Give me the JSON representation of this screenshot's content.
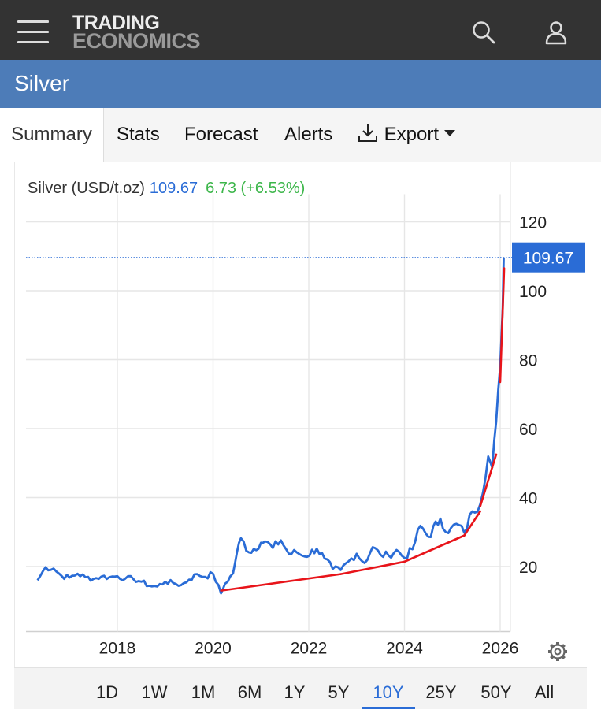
{
  "logo": {
    "line1": "TRADING",
    "line2": "ECONOMICS"
  },
  "page_title": "Silver",
  "tabs": [
    {
      "label": "Summary",
      "active": true
    },
    {
      "label": "Stats"
    },
    {
      "label": "Forecast"
    },
    {
      "label": "Alerts"
    },
    {
      "label": "Export",
      "icon": "download-icon",
      "has_dropdown": true
    }
  ],
  "quote": {
    "name": "Silver (USD/t.oz)",
    "price": "109.67",
    "change": "6.73 (+6.53%)"
  },
  "chart_data": {
    "type": "line",
    "series": [
      {
        "values": [
          [
            "2016-05",
            16.0
          ],
          [
            "2016-07",
            19.8
          ],
          [
            "2016-09",
            19.4
          ],
          [
            "2016-11",
            17.3
          ],
          [
            "2017-01",
            16.8
          ],
          [
            "2017-03",
            17.9
          ],
          [
            "2017-05",
            16.9
          ],
          [
            "2017-07",
            16.4
          ],
          [
            "2017-09",
            17.1
          ],
          [
            "2017-11",
            16.9
          ],
          [
            "2018-01",
            17.2
          ],
          [
            "2018-03",
            16.5
          ],
          [
            "2018-05",
            16.4
          ],
          [
            "2018-07",
            15.6
          ],
          [
            "2018-09",
            14.4
          ],
          [
            "2018-11",
            14.2
          ],
          [
            "2019-01",
            15.6
          ],
          [
            "2019-03",
            15.2
          ],
          [
            "2019-05",
            14.6
          ],
          [
            "2019-07",
            16.2
          ],
          [
            "2019-09",
            17.8
          ],
          [
            "2019-11",
            17.0
          ],
          [
            "2020-01",
            17.9
          ],
          [
            "2020-03",
            12.2
          ],
          [
            "2020-04",
            15.0
          ],
          [
            "2020-06",
            18.0
          ],
          [
            "2020-07",
            24.2
          ],
          [
            "2020-08",
            28.2
          ],
          [
            "2020-10",
            24.1
          ],
          [
            "2021-01",
            26.9
          ],
          [
            "2021-02",
            27.3
          ],
          [
            "2021-04",
            25.4
          ],
          [
            "2021-06",
            27.6
          ],
          [
            "2021-08",
            23.7
          ],
          [
            "2021-10",
            24.1
          ],
          [
            "2021-12",
            22.9
          ],
          [
            "2022-03",
            25.2
          ],
          [
            "2022-05",
            22.3
          ],
          [
            "2022-07",
            19.3
          ],
          [
            "2022-09",
            19.0
          ],
          [
            "2022-11",
            21.5
          ],
          [
            "2023-01",
            23.7
          ],
          [
            "2023-03",
            21.0
          ],
          [
            "2023-05",
            25.6
          ],
          [
            "2023-07",
            23.4
          ],
          [
            "2023-09",
            23.2
          ],
          [
            "2023-11",
            24.8
          ],
          [
            "2024-01",
            22.5
          ],
          [
            "2024-03",
            25.0
          ],
          [
            "2024-05",
            31.8
          ],
          [
            "2024-07",
            28.6
          ],
          [
            "2024-10",
            33.9
          ],
          [
            "2024-12",
            29.7
          ],
          [
            "2025-02",
            32.4
          ],
          [
            "2025-04",
            29.8
          ],
          [
            "2025-06",
            36.0
          ],
          [
            "2025-08",
            38.1
          ],
          [
            "2025-10",
            51.9
          ],
          [
            "2025-11",
            48.7
          ],
          [
            "2025-12",
            62.0
          ],
          [
            "2026-01",
            78.0
          ],
          [
            "2026-01-20",
            95.0
          ],
          [
            "2026-01-28",
            109.67
          ]
        ]
      }
    ],
    "trendlines": [
      [
        [
          "2020-03",
          13.0
        ],
        [
          "2022-09",
          17.8
        ]
      ],
      [
        [
          "2022-09",
          17.8
        ],
        [
          "2024-01",
          21.4
        ]
      ],
      [
        [
          "2024-01",
          21.4
        ],
        [
          "2025-04",
          29.0
        ]
      ],
      [
        [
          "2025-04",
          29.0
        ],
        [
          "2025-08",
          36.0
        ]
      ],
      [
        [
          "2025-08",
          37.5
        ],
        [
          "2025-12",
          52.5
        ]
      ],
      [
        [
          "2026-01",
          73.5
        ],
        [
          "2026-02",
          106.5
        ]
      ]
    ],
    "x_ticks": [
      "2018",
      "2020",
      "2022",
      "2024",
      "2026"
    ],
    "y_ticks": [
      20,
      40,
      60,
      80,
      100,
      120
    ],
    "ylim": [
      0,
      128
    ],
    "last_value_label": "109.67",
    "grid": true,
    "colors": {
      "line": "#2a6cd6",
      "trend": "#e8141a",
      "grid": "#e6e6e6",
      "last_badge": "#2a6cd6"
    }
  },
  "settings_icon": "gear-icon",
  "ranges": [
    {
      "label": "1D"
    },
    {
      "label": "1W"
    },
    {
      "label": "1M"
    },
    {
      "label": "6M"
    },
    {
      "label": "1Y"
    },
    {
      "label": "5Y"
    },
    {
      "label": "10Y",
      "active": true
    },
    {
      "label": "25Y"
    },
    {
      "label": "50Y"
    },
    {
      "label": "All"
    }
  ]
}
